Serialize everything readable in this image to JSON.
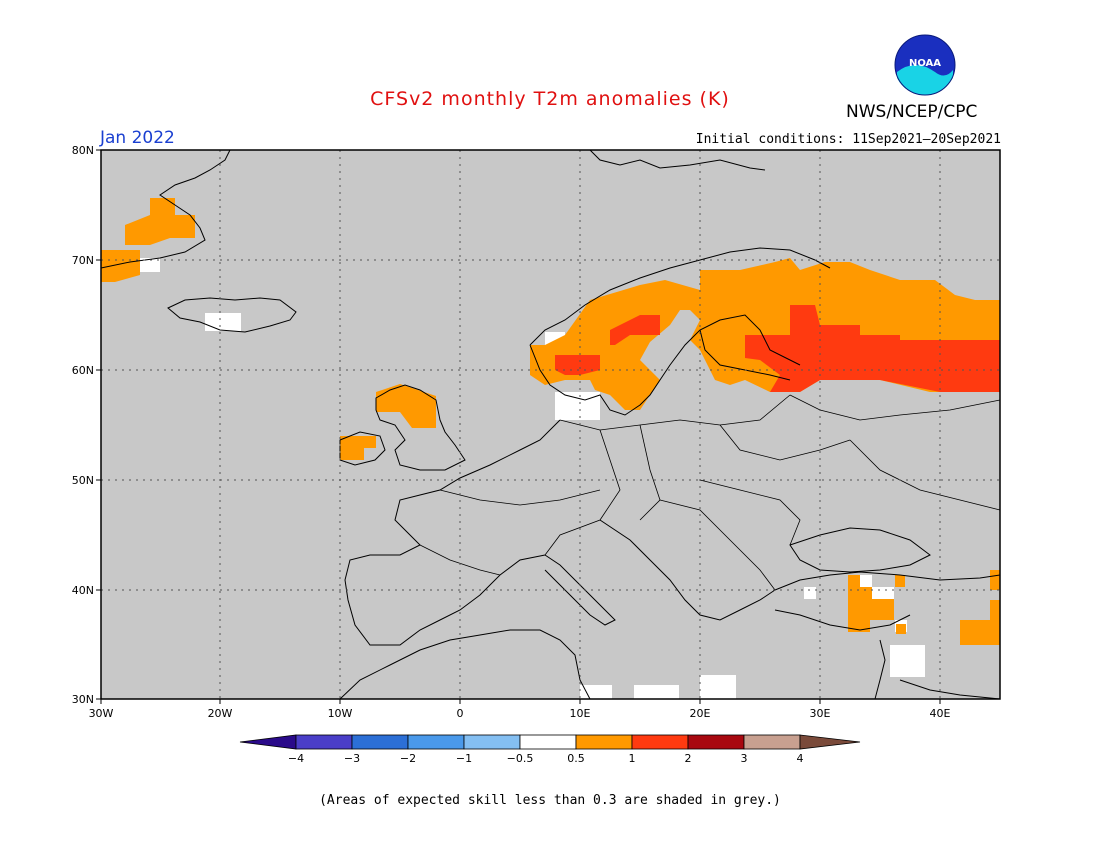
{
  "title": "CFSv2 monthly T2m anomalies (K)",
  "agency": "NWS/NCEP/CPC",
  "logo_text": "NOAA",
  "valid_month": "Jan 2022",
  "initial_conditions": "Initial conditions: 11Sep2021—20Sep2021",
  "footnote": "(Areas of expected skill less than 0.3 are shaded in grey.)",
  "axes": {
    "lon_ticks": [
      "30W",
      "20W",
      "10W",
      "0",
      "10E",
      "20E",
      "30E",
      "40E"
    ],
    "lat_ticks": [
      "80N",
      "70N",
      "60N",
      "50N",
      "40N",
      "30N"
    ]
  },
  "colorbar": {
    "labels": [
      "−4",
      "−3",
      "−2",
      "−1",
      "−0.5",
      "0.5",
      "1",
      "2",
      "3",
      "4"
    ],
    "colors": [
      "#2a0a8a",
      "#4a3ec8",
      "#2c6fd6",
      "#4a99ea",
      "#84bff2",
      "#ffffff",
      "#ff9900",
      "#ff3a10",
      "#a80810",
      "#c8a090",
      "#7a4a3a"
    ]
  },
  "colors": {
    "grey_mask": "#c8c8c8",
    "anomaly_0_5_to_1": "#ff9900",
    "anomaly_1_to_2": "#ff3a10",
    "white_neutral": "#ffffff"
  }
}
